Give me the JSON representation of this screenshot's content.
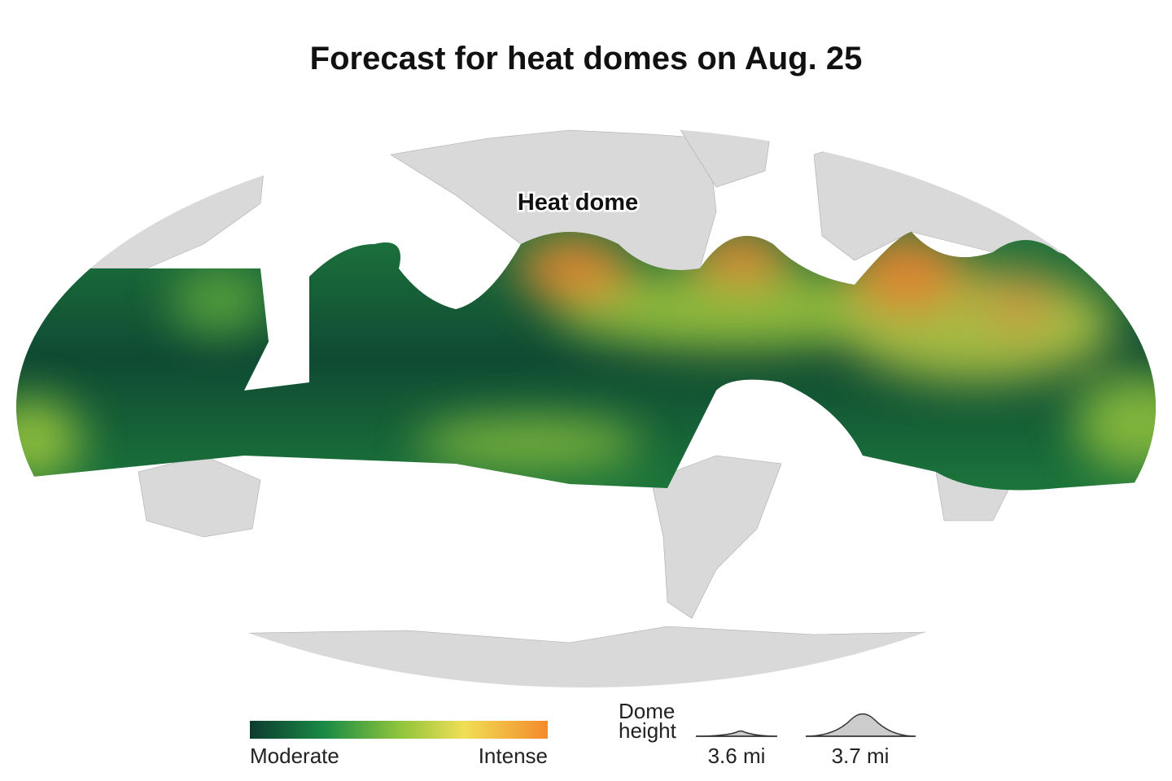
{
  "title": "Forecast for heat domes on Aug. 25",
  "map": {
    "annotation": "Heat dome"
  },
  "legend": {
    "color_scale": {
      "low_label": "Moderate",
      "high_label": "Intense"
    },
    "dome_height": {
      "title": "Dome height",
      "items": [
        "3.6 mi",
        "3.7 mi"
      ]
    }
  }
}
